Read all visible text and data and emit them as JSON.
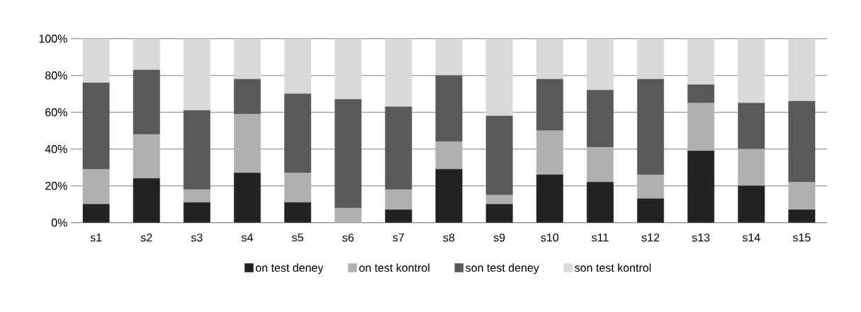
{
  "chart_data": {
    "type": "bar",
    "stacked": true,
    "categories": [
      "s1",
      "s2",
      "s3",
      "s4",
      "s5",
      "s6",
      "s7",
      "s8",
      "s9",
      "s10",
      "s11",
      "s12",
      "s13",
      "s14",
      "s15"
    ],
    "series": [
      {
        "name": "on test  deney",
        "color": "#222222",
        "values": [
          10,
          24,
          11,
          27,
          11,
          0,
          7,
          29,
          10,
          26,
          22,
          13,
          39,
          20,
          7
        ]
      },
      {
        "name": "on test  kontrol",
        "color": "#b0b0b0",
        "values": [
          19,
          24,
          7,
          32,
          16,
          8,
          11,
          15,
          5,
          24,
          19,
          13,
          26,
          20,
          15
        ]
      },
      {
        "name": "son test  deney",
        "color": "#595959",
        "values": [
          47,
          35,
          43,
          19,
          43,
          59,
          45,
          36,
          43,
          28,
          31,
          52,
          10,
          25,
          44
        ]
      },
      {
        "name": "son test  kontrol",
        "color": "#d9d9d9",
        "values": [
          24,
          17,
          39,
          22,
          30,
          33,
          37,
          20,
          42,
          22,
          28,
          22,
          25,
          35,
          34
        ]
      }
    ],
    "ylim": [
      0,
      100
    ],
    "yticks": [
      {
        "value": 0,
        "label": "0%"
      },
      {
        "value": 20,
        "label": "20%"
      },
      {
        "value": 40,
        "label": "40%"
      },
      {
        "value": 60,
        "label": "60%"
      },
      {
        "value": 80,
        "label": "80%"
      },
      {
        "value": 100,
        "label": "100%"
      }
    ],
    "grid": "y",
    "legend": "bottom"
  }
}
